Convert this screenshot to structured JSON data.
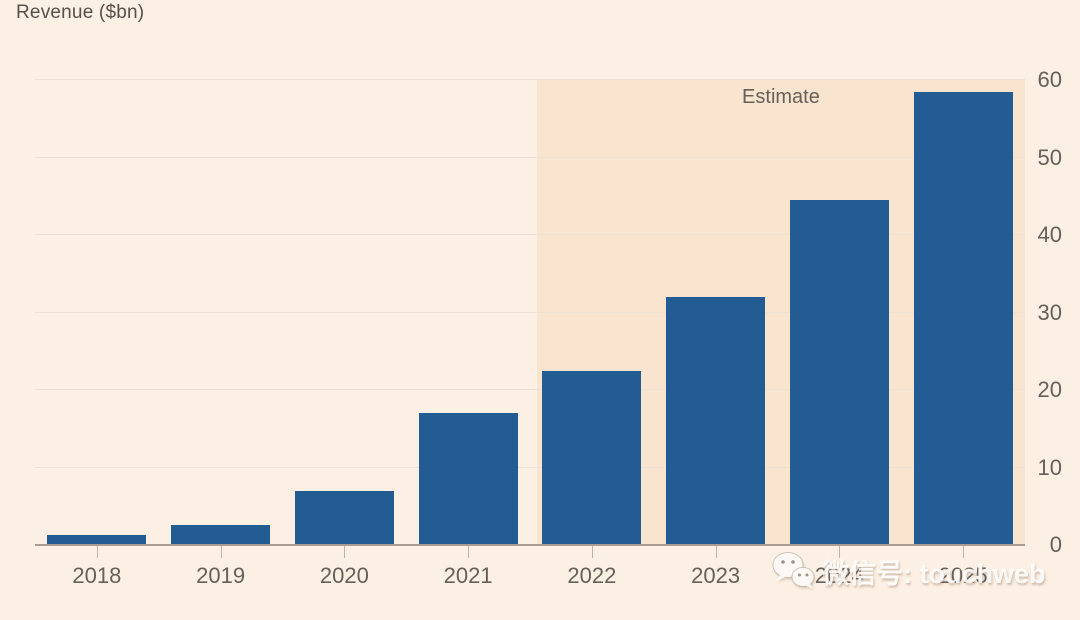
{
  "title": "Revenue ($bn)",
  "estimate_label": "Estimate",
  "watermark": {
    "icon": "wechat-icon",
    "text": "微信号: touchweb"
  },
  "colors": {
    "background": "#FCF0E4",
    "estimate_region": "#F9E5CF",
    "bar": "#235C92",
    "gridline": "#EDE1D1",
    "axis": "#A89C8E",
    "label_text": "#66605A",
    "watermark_text": "#FFFFFF"
  },
  "chart_data": {
    "type": "bar",
    "title": "Revenue ($bn)",
    "categories": [
      "2018",
      "2019",
      "2020",
      "2021",
      "2022",
      "2023",
      "2024",
      "2025"
    ],
    "values": [
      1.3,
      2.6,
      7,
      17,
      22.5,
      32,
      44.5,
      58.5
    ],
    "xlabel": "",
    "ylabel": "Revenue ($bn)",
    "ylim": [
      0,
      60
    ],
    "yticks": [
      0,
      10,
      20,
      30,
      40,
      50,
      60
    ],
    "y_axis_side": "right",
    "grid": true,
    "annotation": "Estimate",
    "estimate_from_category": "2022",
    "estimate_left_fraction": 0.507
  }
}
